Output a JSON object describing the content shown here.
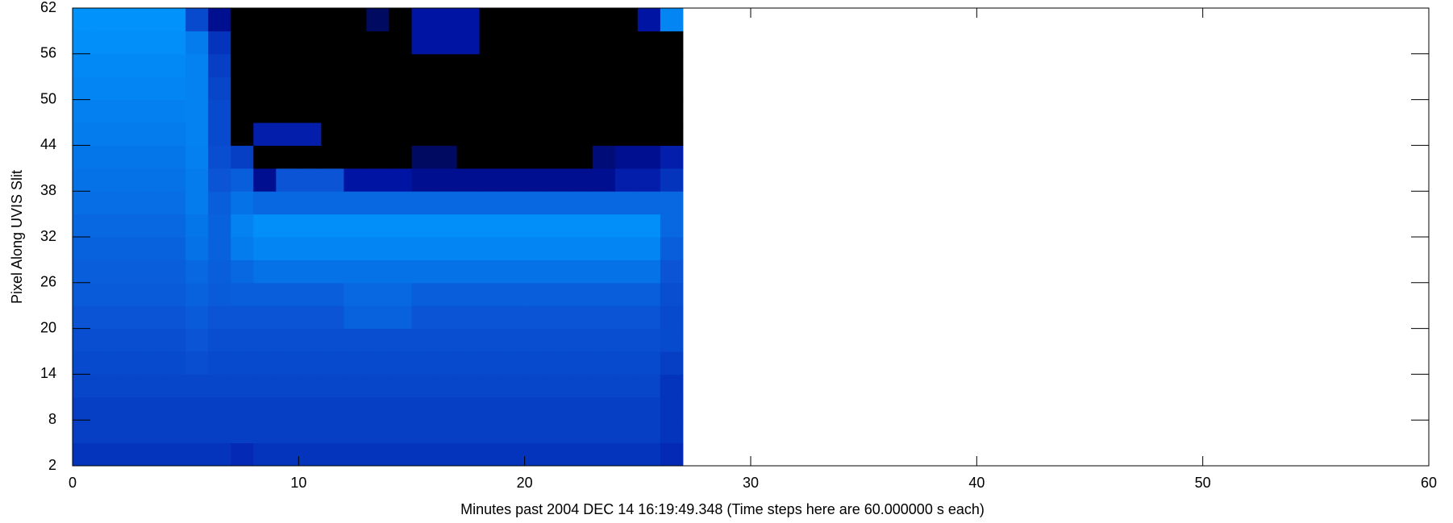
{
  "chart_data": {
    "type": "heatmap",
    "xlabel": "Minutes past 2004 DEC 14 16:19:49.348 (Time steps here are 60.000000 s each)",
    "ylabel": "Pixel Along UVIS Slit",
    "xlim": [
      0,
      60
    ],
    "ylim": [
      2,
      62
    ],
    "xticks": [
      0,
      10,
      20,
      30,
      40,
      50,
      60
    ],
    "yticks": [
      2,
      8,
      14,
      20,
      26,
      32,
      38,
      44,
      50,
      56,
      62
    ],
    "xbins": [
      0,
      1,
      2,
      3,
      4,
      5,
      6,
      7,
      8,
      9,
      10,
      11,
      12,
      13,
      14,
      15,
      16,
      17,
      18,
      19,
      20,
      21,
      22,
      23,
      24,
      25,
      26,
      27
    ],
    "ybins": [
      2,
      5,
      8,
      11,
      14,
      17,
      20,
      23,
      26,
      29,
      32,
      35,
      38,
      41,
      44,
      47,
      50,
      53,
      56,
      59,
      62
    ],
    "colorscale": [
      "#000000",
      "#0010a0",
      "#0a58d8",
      "#0099ff"
    ],
    "z": [
      [
        0.5,
        0.5,
        0.5,
        0.5,
        0.5,
        0.5,
        0.5,
        0.45,
        0.5,
        0.5,
        0.5,
        0.5,
        0.5,
        0.5,
        0.5,
        0.5,
        0.5,
        0.5,
        0.5,
        0.5,
        0.5,
        0.5,
        0.5,
        0.5,
        0.5,
        0.5,
        0.45
      ],
      [
        0.55,
        0.55,
        0.55,
        0.55,
        0.55,
        0.55,
        0.55,
        0.55,
        0.55,
        0.55,
        0.55,
        0.55,
        0.55,
        0.55,
        0.55,
        0.55,
        0.55,
        0.55,
        0.55,
        0.55,
        0.55,
        0.55,
        0.55,
        0.55,
        0.55,
        0.55,
        0.5
      ],
      [
        0.55,
        0.55,
        0.55,
        0.55,
        0.55,
        0.55,
        0.55,
        0.55,
        0.55,
        0.55,
        0.55,
        0.55,
        0.55,
        0.55,
        0.55,
        0.55,
        0.55,
        0.55,
        0.55,
        0.55,
        0.55,
        0.55,
        0.55,
        0.55,
        0.55,
        0.55,
        0.5
      ],
      [
        0.58,
        0.58,
        0.58,
        0.58,
        0.58,
        0.58,
        0.58,
        0.58,
        0.58,
        0.58,
        0.58,
        0.58,
        0.58,
        0.58,
        0.58,
        0.58,
        0.58,
        0.58,
        0.58,
        0.58,
        0.58,
        0.58,
        0.58,
        0.58,
        0.58,
        0.58,
        0.5
      ],
      [
        0.6,
        0.6,
        0.6,
        0.6,
        0.6,
        0.62,
        0.6,
        0.6,
        0.6,
        0.6,
        0.6,
        0.6,
        0.6,
        0.6,
        0.6,
        0.6,
        0.6,
        0.6,
        0.6,
        0.6,
        0.6,
        0.6,
        0.6,
        0.6,
        0.6,
        0.6,
        0.55
      ],
      [
        0.62,
        0.62,
        0.62,
        0.62,
        0.62,
        0.65,
        0.62,
        0.62,
        0.62,
        0.62,
        0.62,
        0.62,
        0.62,
        0.62,
        0.62,
        0.62,
        0.62,
        0.62,
        0.62,
        0.62,
        0.62,
        0.62,
        0.62,
        0.62,
        0.62,
        0.62,
        0.6
      ],
      [
        0.65,
        0.65,
        0.65,
        0.65,
        0.65,
        0.68,
        0.65,
        0.65,
        0.65,
        0.65,
        0.65,
        0.65,
        0.72,
        0.72,
        0.72,
        0.65,
        0.65,
        0.65,
        0.65,
        0.65,
        0.65,
        0.65,
        0.65,
        0.65,
        0.65,
        0.65,
        0.6
      ],
      [
        0.68,
        0.68,
        0.68,
        0.68,
        0.68,
        0.72,
        0.68,
        0.7,
        0.7,
        0.7,
        0.7,
        0.7,
        0.75,
        0.75,
        0.75,
        0.7,
        0.7,
        0.7,
        0.7,
        0.7,
        0.7,
        0.7,
        0.7,
        0.7,
        0.7,
        0.7,
        0.62
      ],
      [
        0.7,
        0.7,
        0.7,
        0.7,
        0.7,
        0.75,
        0.7,
        0.75,
        0.8,
        0.8,
        0.8,
        0.8,
        0.8,
        0.8,
        0.8,
        0.8,
        0.8,
        0.8,
        0.8,
        0.8,
        0.8,
        0.8,
        0.8,
        0.8,
        0.8,
        0.8,
        0.65
      ],
      [
        0.72,
        0.72,
        0.72,
        0.72,
        0.72,
        0.8,
        0.72,
        0.85,
        0.9,
        0.9,
        0.9,
        0.9,
        0.9,
        0.9,
        0.9,
        0.9,
        0.9,
        0.9,
        0.9,
        0.9,
        0.9,
        0.9,
        0.9,
        0.9,
        0.9,
        0.9,
        0.7
      ],
      [
        0.75,
        0.75,
        0.75,
        0.75,
        0.75,
        0.82,
        0.72,
        0.88,
        0.95,
        0.95,
        0.95,
        0.95,
        0.95,
        0.95,
        0.95,
        0.95,
        0.95,
        0.95,
        0.95,
        0.95,
        0.95,
        0.95,
        0.95,
        0.95,
        0.95,
        0.95,
        0.75
      ],
      [
        0.78,
        0.78,
        0.78,
        0.78,
        0.78,
        0.85,
        0.7,
        0.8,
        0.75,
        0.75,
        0.75,
        0.75,
        0.75,
        0.75,
        0.75,
        0.75,
        0.75,
        0.75,
        0.75,
        0.75,
        0.75,
        0.75,
        0.75,
        0.75,
        0.75,
        0.75,
        0.75
      ],
      [
        0.8,
        0.8,
        0.8,
        0.8,
        0.8,
        0.85,
        0.65,
        0.7,
        0.3,
        0.65,
        0.65,
        0.65,
        0.35,
        0.35,
        0.35,
        0.3,
        0.3,
        0.3,
        0.3,
        0.3,
        0.3,
        0.3,
        0.3,
        0.3,
        0.4,
        0.4,
        0.5
      ],
      [
        0.82,
        0.82,
        0.82,
        0.82,
        0.82,
        0.87,
        0.62,
        0.55,
        0,
        0,
        0,
        0,
        0,
        0,
        0,
        0.2,
        0.2,
        0,
        0,
        0,
        0,
        0,
        0,
        0.25,
        0.3,
        0.3,
        0.4
      ],
      [
        0.85,
        0.85,
        0.85,
        0.85,
        0.85,
        0.88,
        0.6,
        0,
        0.4,
        0.4,
        0.4,
        0,
        0,
        0,
        0,
        0,
        0,
        0,
        0,
        0,
        0,
        0,
        0,
        0,
        0,
        0,
        0
      ],
      [
        0.87,
        0.87,
        0.87,
        0.87,
        0.87,
        0.88,
        0.6,
        0,
        0,
        0,
        0,
        0,
        0,
        0,
        0,
        0,
        0,
        0,
        0,
        0,
        0,
        0,
        0,
        0,
        0,
        0,
        0
      ],
      [
        0.9,
        0.9,
        0.9,
        0.9,
        0.9,
        0.88,
        0.58,
        0,
        0,
        0,
        0,
        0,
        0,
        0,
        0,
        0,
        0,
        0,
        0,
        0,
        0,
        0,
        0,
        0,
        0,
        0,
        0
      ],
      [
        0.92,
        0.92,
        0.92,
        0.92,
        0.92,
        0.88,
        0.55,
        0,
        0,
        0,
        0,
        0,
        0,
        0,
        0,
        0,
        0,
        0,
        0,
        0,
        0,
        0,
        0,
        0,
        0,
        0,
        0
      ],
      [
        0.95,
        0.95,
        0.95,
        0.95,
        0.95,
        0.85,
        0.5,
        0,
        0,
        0,
        0,
        0,
        0,
        0,
        0,
        0.35,
        0.35,
        0.35,
        0,
        0,
        0,
        0,
        0,
        0,
        0,
        0,
        0
      ],
      [
        0.97,
        0.97,
        0.97,
        0.97,
        0.97,
        0.6,
        0.3,
        0,
        0,
        0,
        0,
        0,
        0,
        0.2,
        0,
        0.35,
        0.35,
        0.35,
        0,
        0,
        0,
        0,
        0,
        0,
        0,
        0.35,
        0.9
      ]
    ]
  }
}
